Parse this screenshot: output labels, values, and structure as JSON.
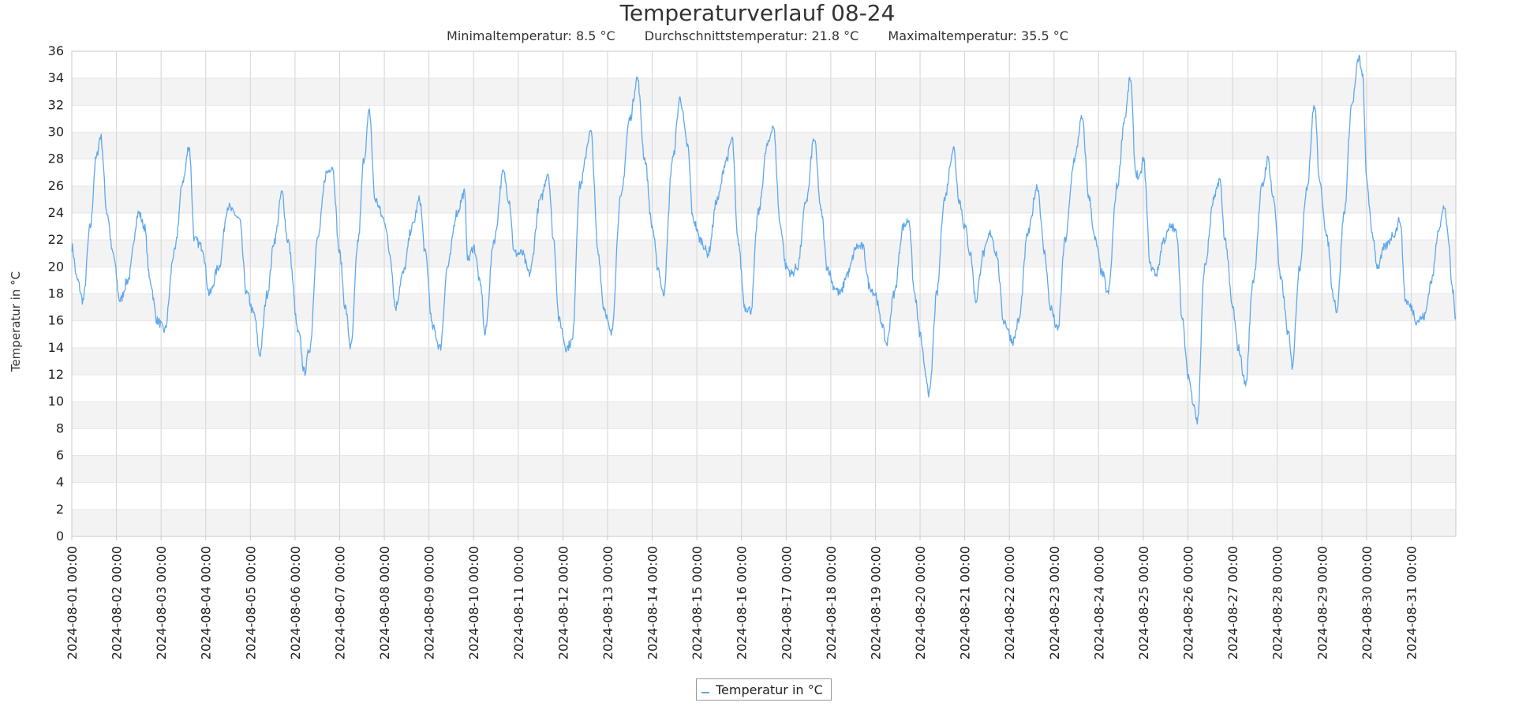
{
  "chart_data": {
    "type": "line",
    "title": "Temperaturverlauf 08-24",
    "subtitle": {
      "min": "Minimaltemperatur: 8.5 °C",
      "avg": "Durchschnittstemperatur: 21.8 °C",
      "max": "Maximaltemperatur: 35.5 °C"
    },
    "xlabel": "",
    "ylabel": "Temperatur in °C",
    "ylim": [
      0,
      36
    ],
    "y_ticks": [
      0,
      2,
      4,
      6,
      8,
      10,
      12,
      14,
      16,
      18,
      20,
      22,
      24,
      26,
      28,
      30,
      32,
      34,
      36
    ],
    "x_ticks": [
      "2024-08-01 00:00",
      "2024-08-02 00:00",
      "2024-08-03 00:00",
      "2024-08-04 00:00",
      "2024-08-05 00:00",
      "2024-08-06 00:00",
      "2024-08-07 00:00",
      "2024-08-08 00:00",
      "2024-08-09 00:00",
      "2024-08-10 00:00",
      "2024-08-11 00:00",
      "2024-08-12 00:00",
      "2024-08-13 00:00",
      "2024-08-14 00:00",
      "2024-08-15 00:00",
      "2024-08-16 00:00",
      "2024-08-17 00:00",
      "2024-08-18 00:00",
      "2024-08-19 00:00",
      "2024-08-20 00:00",
      "2024-08-21 00:00",
      "2024-08-22 00:00",
      "2024-08-23 00:00",
      "2024-08-24 00:00",
      "2024-08-25 00:00",
      "2024-08-26 00:00",
      "2024-08-27 00:00",
      "2024-08-28 00:00",
      "2024-08-29 00:00",
      "2024-08-30 00:00",
      "2024-08-31 00:00"
    ],
    "grid": true,
    "alternating_bands": true,
    "legend_position": "bottom-center",
    "series": [
      {
        "name": "Temperatur in °C",
        "color": "#5ea8ec",
        "points": [
          [
            "2024-08-01 00:00",
            21.5
          ],
          [
            "2024-08-01 03:00",
            19.0
          ],
          [
            "2024-08-01 06:00",
            17.5
          ],
          [
            "2024-08-01 10:00",
            23.0
          ],
          [
            "2024-08-01 13:00",
            28.0
          ],
          [
            "2024-08-01 15:30",
            29.7
          ],
          [
            "2024-08-01 19:00",
            24.0
          ],
          [
            "2024-08-01 22:00",
            21.0
          ],
          [
            "2024-08-02 02:00",
            17.5
          ],
          [
            "2024-08-02 06:00",
            19.0
          ],
          [
            "2024-08-02 12:00",
            24.0
          ],
          [
            "2024-08-02 15:00",
            23.0
          ],
          [
            "2024-08-02 18:00",
            19.0
          ],
          [
            "2024-08-02 22:00",
            16.0
          ],
          [
            "2024-08-03 02:00",
            15.3
          ],
          [
            "2024-08-03 07:00",
            21.0
          ],
          [
            "2024-08-03 12:00",
            26.5
          ],
          [
            "2024-08-03 15:00",
            29.0
          ],
          [
            "2024-08-03 18:00",
            22.0
          ],
          [
            "2024-08-03 22:00",
            21.5
          ],
          [
            "2024-08-04 02:00",
            18.0
          ],
          [
            "2024-08-04 07:00",
            20.0
          ],
          [
            "2024-08-04 12:00",
            24.5
          ],
          [
            "2024-08-04 15:00",
            24.0
          ],
          [
            "2024-08-04 18:00",
            23.5
          ],
          [
            "2024-08-04 22:00",
            18.0
          ],
          [
            "2024-08-05 02:00",
            16.5
          ],
          [
            "2024-08-05 05:00",
            13.5
          ],
          [
            "2024-08-05 09:00",
            18.0
          ],
          [
            "2024-08-05 13:00",
            22.0
          ],
          [
            "2024-08-05 17:00",
            25.5
          ],
          [
            "2024-08-05 20:00",
            22.0
          ],
          [
            "2024-08-06 02:00",
            15.0
          ],
          [
            "2024-08-06 05:00",
            12.2
          ],
          [
            "2024-08-06 08:00",
            14.0
          ],
          [
            "2024-08-06 12:00",
            22.0
          ],
          [
            "2024-08-06 17:00",
            27.0
          ],
          [
            "2024-08-06 20:00",
            27.5
          ],
          [
            "2024-08-07 00:00",
            21.0
          ],
          [
            "2024-08-07 03:00",
            17.0
          ],
          [
            "2024-08-07 06:00",
            14.0
          ],
          [
            "2024-08-07 10:00",
            22.0
          ],
          [
            "2024-08-07 13:00",
            28.0
          ],
          [
            "2024-08-07 16:00",
            31.5
          ],
          [
            "2024-08-07 19:00",
            25.0
          ],
          [
            "2024-08-08 00:00",
            23.5
          ],
          [
            "2024-08-08 03:00",
            21.0
          ],
          [
            "2024-08-08 06:00",
            17.0
          ],
          [
            "2024-08-08 10:00",
            19.5
          ],
          [
            "2024-08-08 15:00",
            23.0
          ],
          [
            "2024-08-08 19:00",
            25.0
          ],
          [
            "2024-08-08 22:00",
            21.0
          ],
          [
            "2024-08-09 02:00",
            15.5
          ],
          [
            "2024-08-09 06:00",
            14.0
          ],
          [
            "2024-08-09 10:00",
            20.0
          ],
          [
            "2024-08-09 15:00",
            24.0
          ],
          [
            "2024-08-09 19:00",
            25.5
          ],
          [
            "2024-08-09 21:00",
            20.5
          ],
          [
            "2024-08-10 00:00",
            21.5
          ],
          [
            "2024-08-10 04:00",
            18.5
          ],
          [
            "2024-08-10 06:00",
            15.0
          ],
          [
            "2024-08-10 11:00",
            22.0
          ],
          [
            "2024-08-10 16:00",
            27.0
          ],
          [
            "2024-08-10 19:00",
            25.0
          ],
          [
            "2024-08-10 22:00",
            21.0
          ],
          [
            "2024-08-11 02:00",
            21.0
          ],
          [
            "2024-08-11 06:00",
            19.5
          ],
          [
            "2024-08-11 12:00",
            25.0
          ],
          [
            "2024-08-11 16:00",
            27.0
          ],
          [
            "2024-08-11 19:00",
            22.0
          ],
          [
            "2024-08-11 22:00",
            16.0
          ],
          [
            "2024-08-12 02:00",
            14.0
          ],
          [
            "2024-08-12 05:00",
            14.5
          ],
          [
            "2024-08-12 09:00",
            26.0
          ],
          [
            "2024-08-12 15:00",
            30.0
          ],
          [
            "2024-08-12 19:00",
            21.0
          ],
          [
            "2024-08-12 22:00",
            17.0
          ],
          [
            "2024-08-13 02:00",
            15.0
          ],
          [
            "2024-08-13 07:00",
            25.0
          ],
          [
            "2024-08-13 12:00",
            31.0
          ],
          [
            "2024-08-13 16:00",
            34.0
          ],
          [
            "2024-08-13 20:00",
            28.0
          ],
          [
            "2024-08-14 00:00",
            23.0
          ],
          [
            "2024-08-14 03:00",
            20.0
          ],
          [
            "2024-08-14 06:00",
            18.0
          ],
          [
            "2024-08-14 11:00",
            28.0
          ],
          [
            "2024-08-14 15:00",
            32.5
          ],
          [
            "2024-08-14 19:00",
            29.0
          ],
          [
            "2024-08-14 22:00",
            23.5
          ],
          [
            "2024-08-15 02:00",
            22.0
          ],
          [
            "2024-08-15 06:00",
            21.0
          ],
          [
            "2024-08-15 11:00",
            25.0
          ],
          [
            "2024-08-15 16:00",
            28.0
          ],
          [
            "2024-08-15 19:00",
            29.5
          ],
          [
            "2024-08-15 22:00",
            22.0
          ],
          [
            "2024-08-16 02:00",
            17.0
          ],
          [
            "2024-08-16 05:00",
            16.8
          ],
          [
            "2024-08-16 09:00",
            24.0
          ],
          [
            "2024-08-16 14:00",
            29.0
          ],
          [
            "2024-08-16 17:00",
            30.5
          ],
          [
            "2024-08-16 21:00",
            23.0
          ],
          [
            "2024-08-17 00:00",
            20.0
          ],
          [
            "2024-08-17 03:00",
            19.5
          ],
          [
            "2024-08-17 06:00",
            20.0
          ],
          [
            "2024-08-17 11:00",
            25.0
          ],
          [
            "2024-08-17 15:00",
            29.5
          ],
          [
            "2024-08-17 19:00",
            24.0
          ],
          [
            "2024-08-17 22:00",
            20.0
          ],
          [
            "2024-08-18 02:00",
            18.5
          ],
          [
            "2024-08-18 05:00",
            18.0
          ],
          [
            "2024-08-18 09:00",
            19.5
          ],
          [
            "2024-08-18 14:00",
            21.5
          ],
          [
            "2024-08-18 17:00",
            21.5
          ],
          [
            "2024-08-18 21:00",
            18.5
          ],
          [
            "2024-08-19 00:00",
            18.0
          ],
          [
            "2024-08-19 03:00",
            16.0
          ],
          [
            "2024-08-19 06:00",
            14.3
          ],
          [
            "2024-08-19 10:00",
            18.0
          ],
          [
            "2024-08-19 15:00",
            23.0
          ],
          [
            "2024-08-19 18:00",
            23.5
          ],
          [
            "2024-08-19 21:00",
            18.0
          ],
          [
            "2024-08-20 00:00",
            15.0
          ],
          [
            "2024-08-20 03:00",
            12.0
          ],
          [
            "2024-08-20 05:00",
            10.6
          ],
          [
            "2024-08-20 09:00",
            18.0
          ],
          [
            "2024-08-20 13:00",
            25.0
          ],
          [
            "2024-08-20 18:00",
            28.8
          ],
          [
            "2024-08-20 21:00",
            25.0
          ],
          [
            "2024-08-21 00:00",
            23.0
          ],
          [
            "2024-08-21 03:00",
            21.0
          ],
          [
            "2024-08-21 06:00",
            17.5
          ],
          [
            "2024-08-21 10:00",
            21.0
          ],
          [
            "2024-08-21 14:00",
            22.5
          ],
          [
            "2024-08-21 17:00",
            21.0
          ],
          [
            "2024-08-21 21:00",
            16.0
          ],
          [
            "2024-08-22 02:00",
            14.5
          ],
          [
            "2024-08-22 05:00",
            16.0
          ],
          [
            "2024-08-22 10:00",
            22.5
          ],
          [
            "2024-08-22 15:00",
            26.0
          ],
          [
            "2024-08-22 19:00",
            21.0
          ],
          [
            "2024-08-22 22:00",
            17.0
          ],
          [
            "2024-08-23 02:00",
            15.3
          ],
          [
            "2024-08-23 06:00",
            22.0
          ],
          [
            "2024-08-23 11:00",
            28.0
          ],
          [
            "2024-08-23 15:00",
            31.0
          ],
          [
            "2024-08-23 19:00",
            25.0
          ],
          [
            "2024-08-23 22:00",
            22.0
          ],
          [
            "2024-08-24 02:00",
            19.5
          ],
          [
            "2024-08-24 05:00",
            18.0
          ],
          [
            "2024-08-24 10:00",
            26.0
          ],
          [
            "2024-08-24 14:00",
            31.0
          ],
          [
            "2024-08-24 17:00",
            34.0
          ],
          [
            "2024-08-24 20:00",
            27.0
          ],
          [
            "2024-08-24 22:00",
            26.5
          ],
          [
            "2024-08-25 00:00",
            28.0
          ],
          [
            "2024-08-25 04:00",
            20.0
          ],
          [
            "2024-08-25 07:00",
            19.5
          ],
          [
            "2024-08-25 11:00",
            22.0
          ],
          [
            "2024-08-25 15:00",
            23.0
          ],
          [
            "2024-08-25 18:00",
            22.5
          ],
          [
            "2024-08-25 21:00",
            16.0
          ],
          [
            "2024-08-26 00:00",
            12.0
          ],
          [
            "2024-08-26 03:00",
            10.0
          ],
          [
            "2024-08-26 05:00",
            8.5
          ],
          [
            "2024-08-26 09:00",
            20.0
          ],
          [
            "2024-08-26 14:00",
            25.0
          ],
          [
            "2024-08-26 17:00",
            26.5
          ],
          [
            "2024-08-26 20:00",
            22.0
          ],
          [
            "2024-08-27 00:00",
            17.0
          ],
          [
            "2024-08-27 03:00",
            14.0
          ],
          [
            "2024-08-27 07:00",
            11.3
          ],
          [
            "2024-08-27 11:00",
            19.0
          ],
          [
            "2024-08-27 16:00",
            26.0
          ],
          [
            "2024-08-27 19:00",
            28.0
          ],
          [
            "2024-08-27 22:00",
            25.0
          ],
          [
            "2024-08-28 02:00",
            19.0
          ],
          [
            "2024-08-28 06:00",
            15.0
          ],
          [
            "2024-08-28 08:00",
            12.7
          ],
          [
            "2024-08-28 12:00",
            20.0
          ],
          [
            "2024-08-28 16:00",
            26.0
          ],
          [
            "2024-08-28 20:00",
            32.0
          ],
          [
            "2024-08-28 23:00",
            26.0
          ],
          [
            "2024-08-29 03:00",
            22.0
          ],
          [
            "2024-08-29 06:00",
            18.0
          ],
          [
            "2024-08-29 08:00",
            16.8
          ],
          [
            "2024-08-29 12:00",
            24.0
          ],
          [
            "2024-08-29 16:00",
            32.0
          ],
          [
            "2024-08-29 20:00",
            35.5
          ],
          [
            "2024-08-29 22:00",
            34.0
          ],
          [
            "2024-08-30 00:00",
            26.5
          ],
          [
            "2024-08-30 03:00",
            22.5
          ],
          [
            "2024-08-30 06:00",
            20.0
          ],
          [
            "2024-08-30 10:00",
            21.5
          ],
          [
            "2024-08-30 15:00",
            22.5
          ],
          [
            "2024-08-30 18:00",
            23.5
          ],
          [
            "2024-08-30 21:00",
            17.5
          ],
          [
            "2024-08-31 00:00",
            17.0
          ],
          [
            "2024-08-31 03:00",
            16.0
          ],
          [
            "2024-08-31 07:00",
            16.3
          ],
          [
            "2024-08-31 11:00",
            19.0
          ],
          [
            "2024-08-31 15:00",
            23.0
          ],
          [
            "2024-08-31 18:00",
            24.5
          ],
          [
            "2024-08-31 20:00",
            22.0
          ],
          [
            "2024-08-31 22:00",
            18.5
          ],
          [
            "2024-08-31 23:59",
            16.3
          ]
        ]
      }
    ]
  },
  "legend": {
    "label": "Temperatur in °C"
  }
}
